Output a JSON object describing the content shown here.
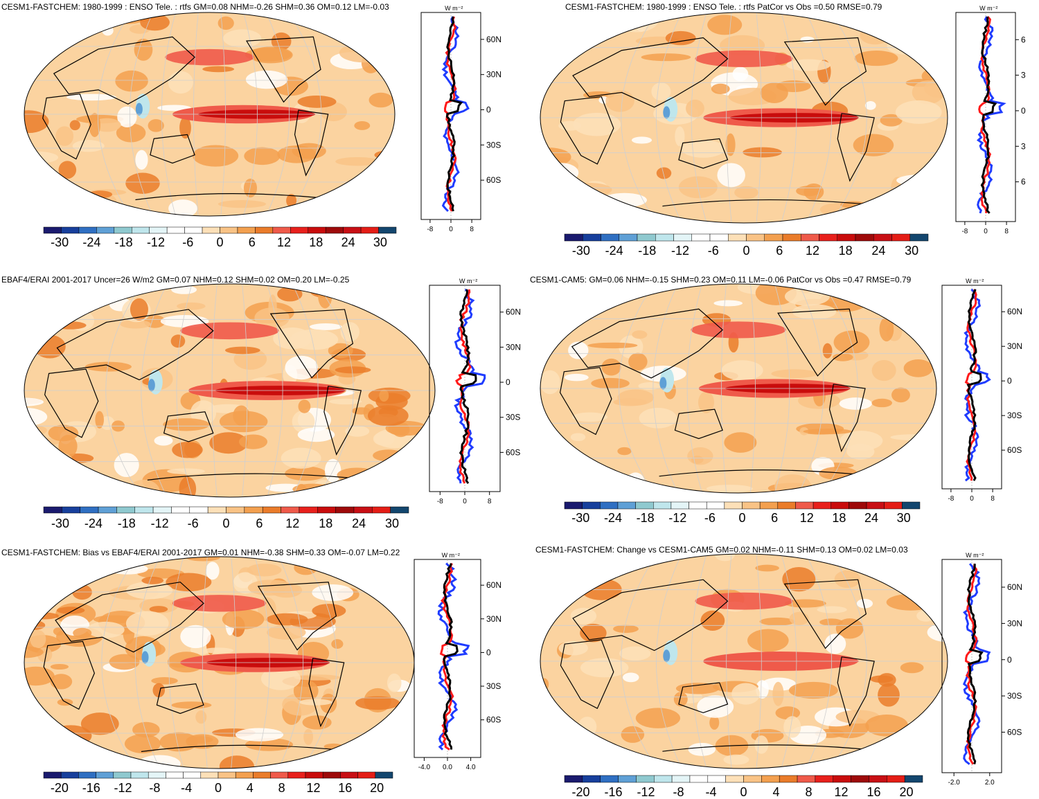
{
  "chart_data": [
    {
      "type": "heatmap",
      "title": "CESM1-FASTCHEM: 1980-1999 : ENSO Tele. : rtfs GM=0.08 NHM=-0.26 SHM=0.36 OM=0.12 LM=-0.03",
      "colorbar_ticks": [
        "-30",
        "-24",
        "-18",
        "-12",
        "-6",
        "0",
        "6",
        "12",
        "18",
        "24",
        "30"
      ],
      "profile": {
        "unit": "W m⁻²",
        "xticks": [
          "-8",
          "0",
          "8"
        ],
        "ylabels": [
          "60N",
          "30N",
          "0",
          "30S",
          "60S"
        ]
      },
      "colors": {
        "blue": "#1f3cff",
        "red": "#ff1a1a",
        "black": "#000000"
      }
    },
    {
      "type": "heatmap",
      "title": "CESM1-FASTCHEM: 1980-1999 : ENSO Tele. : rtfs PatCor vs Obs =0.50 RMSE=0.79",
      "colorbar_ticks": [
        "-30",
        "-24",
        "-18",
        "-12",
        "-6",
        "0",
        "6",
        "12",
        "18",
        "24",
        "30"
      ],
      "profile": {
        "unit": "W m⁻²",
        "xticks": [
          "-8",
          "0",
          "8"
        ],
        "ylabels": [
          "6",
          "3",
          "0",
          "3",
          "6"
        ]
      }
    },
    {
      "type": "heatmap",
      "title": "EBAF4/ERAI 2001-2017 Uncer=26 W/m2 GM=0.07 NHM=0.12 SHM=0.02 OM=0.20 LM=-0.25",
      "colorbar_ticks": [
        "-30",
        "-24",
        "-18",
        "-12",
        "-6",
        "0",
        "6",
        "12",
        "18",
        "24",
        "30"
      ],
      "profile": {
        "unit": "W m⁻²",
        "xticks": [
          "-8",
          "0",
          "8"
        ],
        "ylabels": [
          "60N",
          "30N",
          "0",
          "30S",
          "60S"
        ]
      }
    },
    {
      "type": "heatmap",
      "title": "CESM1-CAM5: GM=0.06 NHM=-0.15 SHM=0.23 OM=0.11 LM=-0.06 PatCor vs Obs =0.47 RMSE=0.79",
      "colorbar_ticks": [
        "-30",
        "-24",
        "-18",
        "-12",
        "-6",
        "0",
        "6",
        "12",
        "18",
        "24",
        "30"
      ],
      "profile": {
        "unit": "W m⁻²",
        "xticks": [
          "-8",
          "0",
          "8"
        ],
        "ylabels": [
          "60N",
          "30N",
          "0",
          "30S",
          "60S"
        ]
      }
    },
    {
      "type": "heatmap",
      "title": "CESM1-FASTCHEM: Bias vs EBAF4/ERAI 2001-2017 GM=0.01 NHM=-0.38 SHM=0.33 OM=-0.07 LM=0.22",
      "colorbar_ticks": [
        "-20",
        "-16",
        "-12",
        "-8",
        "-4",
        "0",
        "4",
        "8",
        "12",
        "16",
        "20"
      ],
      "profile": {
        "unit": "W m⁻²",
        "xticks": [
          "-4.0",
          "0.0",
          "4.0"
        ],
        "ylabels": [
          "60N",
          "30N",
          "0",
          "30S",
          "60S"
        ]
      }
    },
    {
      "type": "heatmap",
      "title": "CESM1-FASTCHEM: Change vs CESM1-CAM5 GM=0.02 NHM=-0.11 SHM=0.13 OM=0.02 LM=0.03",
      "colorbar_ticks": [
        "-20",
        "-16",
        "-12",
        "-8",
        "-4",
        "0",
        "4",
        "8",
        "12",
        "16",
        "20"
      ],
      "profile": {
        "unit": "W m⁻²",
        "xticks": [
          "-2.0",
          "2.0"
        ],
        "ylabels": [
          "60N",
          "30N",
          "0",
          "30S",
          "60S"
        ]
      }
    }
  ],
  "palette": [
    "#1a1a6e",
    "#173f9c",
    "#2f6fc2",
    "#5fa0d6",
    "#8fc9cf",
    "#bfe6ec",
    "#e4f5f7",
    "#ffffff",
    "#ffffff",
    "#fde0b8",
    "#f9c386",
    "#f3a04f",
    "#ea7c2a",
    "#ef5a4a",
    "#e8201c",
    "#c90c0c",
    "#9e0a0a",
    "#c80f14",
    "#e41d16",
    "#13466e"
  ]
}
